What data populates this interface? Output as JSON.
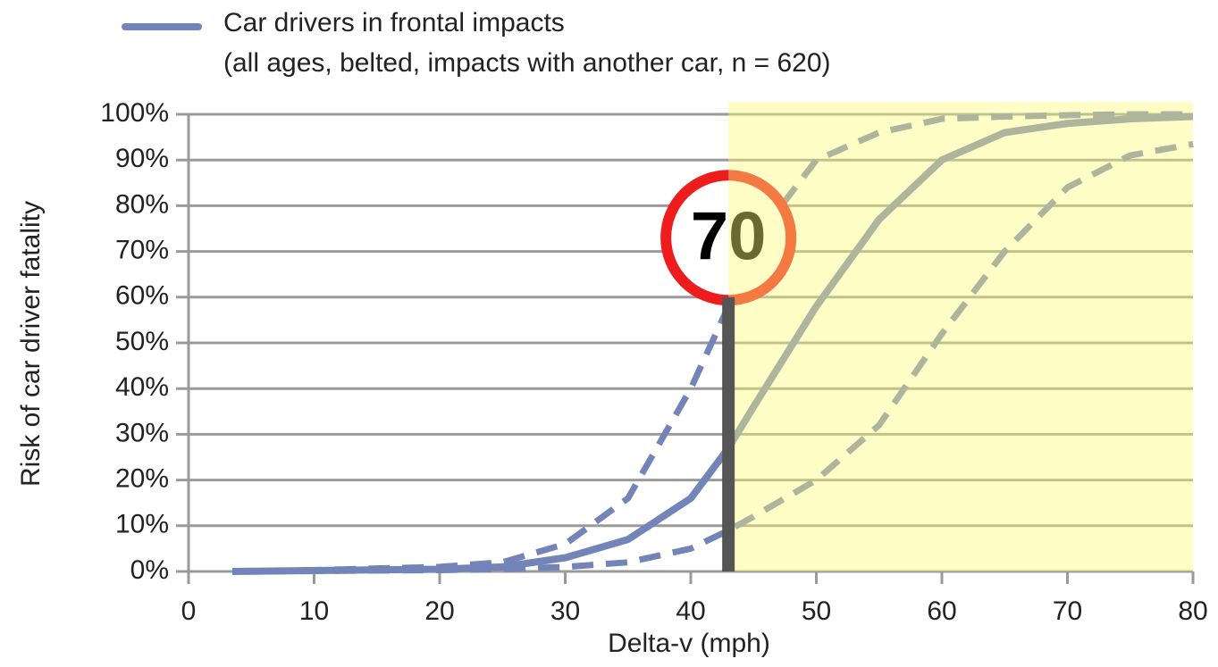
{
  "chart_data": {
    "type": "line",
    "legend_subtitle": "(all ages, belted, impacts with another car, n = 620)",
    "xlabel": "Delta-v (mph)",
    "ylabel": "Risk of car driver fatality",
    "xlim": [
      0,
      80
    ],
    "xticks": [
      0,
      10,
      20,
      30,
      40,
      50,
      60,
      70,
      80
    ],
    "ylim": [
      0,
      100
    ],
    "yticks": [
      {
        "value": 0,
        "label": "0%"
      },
      {
        "value": 10,
        "label": "10%"
      },
      {
        "value": 20,
        "label": "20%"
      },
      {
        "value": 30,
        "label": "30%"
      },
      {
        "value": 40,
        "label": "40%"
      },
      {
        "value": 50,
        "label": "50%"
      },
      {
        "value": 60,
        "label": "60%"
      },
      {
        "value": 70,
        "label": "70%"
      },
      {
        "value": 80,
        "label": "80%"
      },
      {
        "value": 90,
        "label": "90%"
      },
      {
        "value": 100,
        "label": "100%"
      }
    ],
    "grid": true,
    "highlight_x": [
      43,
      80
    ],
    "marker_x": 43,
    "sign_label": "70",
    "x": [
      3.5,
      10,
      20,
      25,
      30,
      35,
      40,
      43,
      45,
      50,
      55,
      60,
      65,
      70,
      75,
      80
    ],
    "series": [
      {
        "name": "Car drivers in frontal impacts",
        "color": "#7384b9",
        "dash": false,
        "values": [
          0,
          0.2,
          0.5,
          1,
          3,
          7,
          16,
          27,
          36,
          58,
          77,
          90,
          96,
          98,
          99,
          99.5
        ]
      },
      {
        "color": "#7384b9",
        "dash": true,
        "values": [
          0,
          0.3,
          1,
          2,
          6,
          16,
          40,
          58,
          72,
          90,
          96,
          99,
          99.5,
          99.8,
          100,
          100
        ]
      },
      {
        "color": "#7384b9",
        "dash": true,
        "values": [
          0,
          0.1,
          0.3,
          0.5,
          1,
          2,
          5,
          9,
          12,
          20,
          32,
          52,
          70,
          84,
          91,
          93.5
        ]
      }
    ]
  }
}
